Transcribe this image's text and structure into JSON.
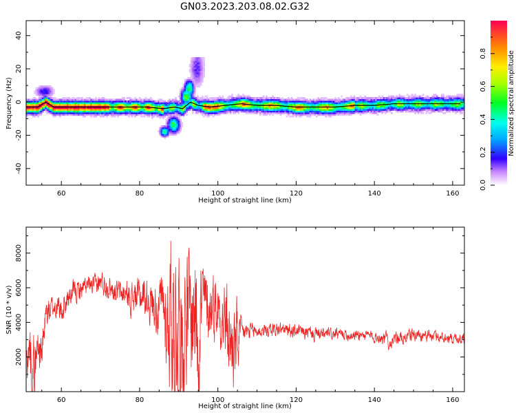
{
  "figure": {
    "title": "GN03.2023.203.08.02.G32"
  },
  "chart_data": [
    {
      "type": "heatmap",
      "xlabel": "Height of straight line (km)",
      "ylabel": "Frequency (Hz)",
      "xlim": [
        51,
        163
      ],
      "ylim": [
        -50,
        49
      ],
      "xticks": [
        60,
        80,
        100,
        120,
        140,
        160
      ],
      "yticks": [
        -40,
        -20,
        0,
        20,
        40
      ],
      "grid": false,
      "colorbar": {
        "label": "Normalized spectral amplitude",
        "range": [
          0,
          1
        ],
        "ticks": [
          "0.0",
          "0.2",
          "0.4",
          "0.6",
          "0.8"
        ],
        "colormap": "hsv-like"
      },
      "colors": {
        "line": "#000000"
      },
      "ridge": [
        [
          51,
          -3
        ],
        [
          54,
          -3
        ],
        [
          56,
          0
        ],
        [
          58,
          -3
        ],
        [
          62,
          -3
        ],
        [
          66,
          -3
        ],
        [
          70,
          -3
        ],
        [
          74,
          -3
        ],
        [
          78,
          -3
        ],
        [
          82,
          -3
        ],
        [
          86,
          -4
        ],
        [
          89,
          -3
        ],
        [
          91,
          -4
        ],
        [
          93,
          0
        ],
        [
          95,
          -2
        ],
        [
          98,
          -3
        ],
        [
          102,
          -2
        ],
        [
          106,
          -1
        ],
        [
          110,
          -2
        ],
        [
          115,
          -2
        ],
        [
          120,
          -3
        ],
        [
          125,
          -3
        ],
        [
          130,
          -3
        ],
        [
          135,
          -2
        ],
        [
          140,
          -2
        ],
        [
          145,
          -1
        ],
        [
          150,
          -1
        ],
        [
          155,
          -1
        ],
        [
          160,
          -1
        ],
        [
          162,
          -1
        ]
      ],
      "features": [
        {
          "x": 94.5,
          "y": 20,
          "w": 1.6,
          "h": 10,
          "amp": 0.15
        },
        {
          "x": 92.5,
          "y": 8,
          "w": 1.0,
          "h": 4,
          "amp": 0.55
        },
        {
          "x": 91.8,
          "y": 3,
          "w": 1.2,
          "h": 4,
          "amp": 0.6
        },
        {
          "x": 88.5,
          "y": -14,
          "w": 1.3,
          "h": 4,
          "amp": 0.55
        },
        {
          "x": 86.2,
          "y": -18,
          "w": 1.0,
          "h": 2.5,
          "amp": 0.5
        },
        {
          "x": 55.5,
          "y": 6,
          "w": 2.0,
          "h": 3,
          "amp": 0.2
        }
      ]
    },
    {
      "type": "line",
      "xlabel": "Height of straight line (km)",
      "ylabel": "SNR (10 * v/v)",
      "xlim": [
        51,
        163
      ],
      "ylim": [
        0,
        9500
      ],
      "xticks": [
        60,
        80,
        100,
        120,
        140,
        160
      ],
      "yticks": [
        2000,
        4000,
        6000,
        8000
      ],
      "grid": false,
      "colors": {
        "line": "#ee2222"
      },
      "series": [
        {
          "envelope": [
            [
              51,
              1800,
              800
            ],
            [
              52,
              2500,
              1300
            ],
            [
              53,
              1200,
              1400
            ],
            [
              54,
              2800,
              1000
            ],
            [
              55,
              2200,
              900
            ],
            [
              56,
              4500,
              800
            ],
            [
              58,
              4900,
              500
            ],
            [
              60,
              4700,
              600
            ],
            [
              62,
              5500,
              500
            ],
            [
              64,
              5800,
              500
            ],
            [
              66,
              6000,
              450
            ],
            [
              68,
              6100,
              400
            ],
            [
              70,
              6300,
              500
            ],
            [
              72,
              6100,
              500
            ],
            [
              74,
              5800,
              500
            ],
            [
              76,
              5600,
              600
            ],
            [
              78,
              5400,
              700
            ],
            [
              80,
              5600,
              800
            ],
            [
              82,
              5400,
              900
            ],
            [
              84,
              5000,
              1100
            ],
            [
              86,
              4800,
              1500
            ],
            [
              87,
              4000,
              2500
            ],
            [
              88,
              5000,
              3500
            ],
            [
              89,
              3500,
              4000
            ],
            [
              90,
              4500,
              3500
            ],
            [
              91,
              3500,
              3500
            ],
            [
              92,
              5000,
              3000
            ],
            [
              93,
              4000,
              3000
            ],
            [
              94,
              5000,
              3500
            ],
            [
              95,
              4500,
              3800
            ],
            [
              96,
              5200,
              2000
            ],
            [
              97,
              5000,
              1500
            ],
            [
              98,
              4800,
              1500
            ],
            [
              99,
              5200,
              1500
            ],
            [
              100,
              4800,
              1500
            ],
            [
              101,
              4500,
              1500
            ],
            [
              102,
              3800,
              2000
            ],
            [
              103,
              3000,
              2000
            ],
            [
              104,
              2500,
              2000
            ],
            [
              105,
              3000,
              1800
            ],
            [
              106,
              3400,
              500
            ],
            [
              110,
              3500,
              300
            ],
            [
              115,
              3600,
              300
            ],
            [
              120,
              3500,
              300
            ],
            [
              125,
              3300,
              300
            ],
            [
              130,
              3300,
              250
            ],
            [
              135,
              3300,
              250
            ],
            [
              140,
              3200,
              250
            ],
            [
              143,
              3100,
              300
            ],
            [
              144,
              2800,
              300
            ],
            [
              145,
              3000,
              250
            ],
            [
              148,
              3200,
              300
            ],
            [
              150,
              3300,
              280
            ],
            [
              155,
              3200,
              260
            ],
            [
              160,
              3100,
              260
            ],
            [
              163,
              3100,
              250
            ]
          ]
        }
      ]
    }
  ]
}
